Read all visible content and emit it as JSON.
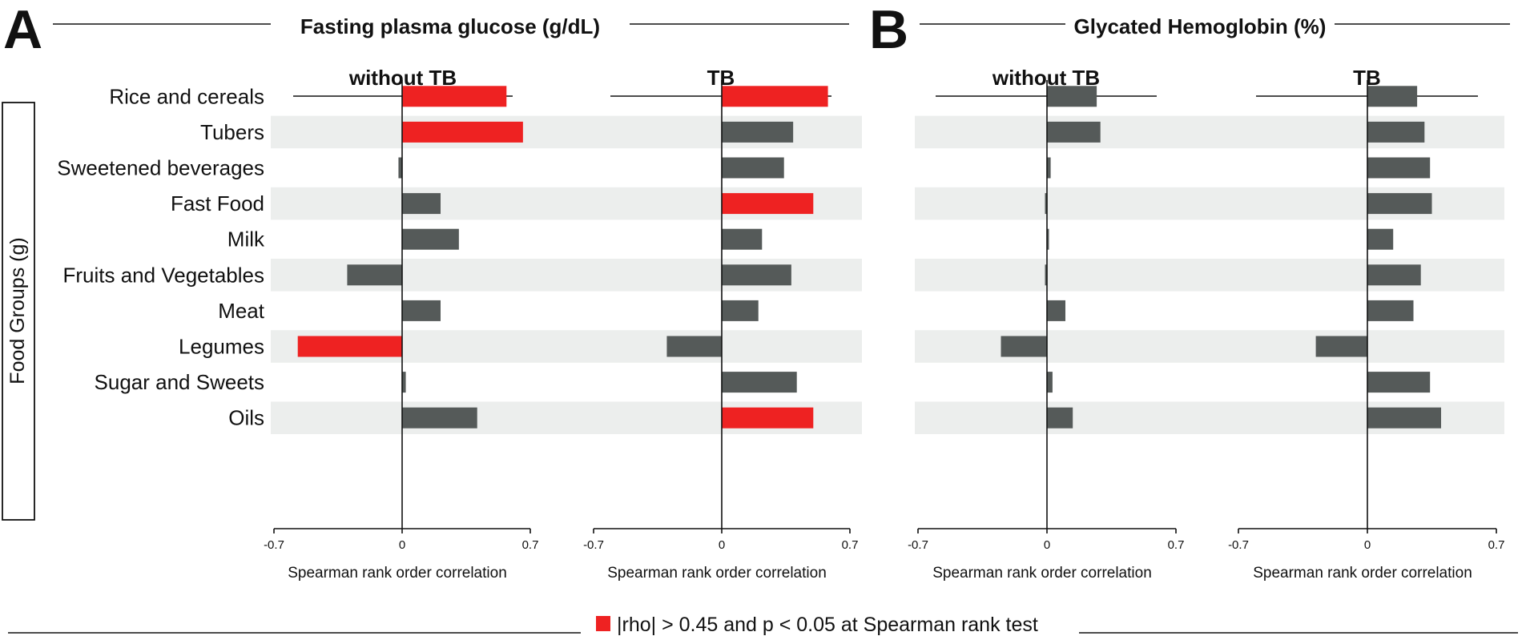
{
  "legend": {
    "text": "|rho| > 0.45 and p < 0.05 at Spearman rank test",
    "significant_color": "#ee2222",
    "nonsignificant_color": "#555a59",
    "band_color": "#eceeed"
  },
  "y_group_label": "Food Groups (g)",
  "categories": [
    "Rice and cereals",
    "Tubers",
    "Sweetened beverages",
    "Fast Food",
    "Milk",
    "Fruits and Vegetables",
    "Meat",
    "Legumes",
    "Sugar and Sweets",
    "Oils"
  ],
  "panels": [
    {
      "letter": "A",
      "title": "Fasting plasma glucose (g/dL)"
    },
    {
      "letter": "B",
      "title": "Glycated Hemoglobin (%)"
    }
  ],
  "chart_data": [
    {
      "type": "bar",
      "panel": "A",
      "subplot": "without TB",
      "title": "without TB",
      "xlabel": "Spearman rank order correlation",
      "xlim": [
        -0.7,
        0.7
      ],
      "xticks": [
        "-0.7",
        "0",
        "0.7"
      ],
      "categories": [
        "Rice and cereals",
        "Tubers",
        "Sweetened beverages",
        "Fast Food",
        "Milk",
        "Fruits and Vegetables",
        "Meat",
        "Legumes",
        "Sugar and Sweets",
        "Oils"
      ],
      "values": [
        0.57,
        0.66,
        -0.02,
        0.21,
        0.31,
        -0.3,
        0.21,
        -0.57,
        0.02,
        0.41
      ],
      "significant": [
        true,
        true,
        false,
        false,
        false,
        false,
        false,
        true,
        false,
        false
      ]
    },
    {
      "type": "bar",
      "panel": "A",
      "subplot": "TB",
      "title": "TB",
      "xlabel": "Spearman rank order correlation",
      "xlim": [
        -0.7,
        0.7
      ],
      "xticks": [
        "-0.7",
        "0",
        "0.7"
      ],
      "categories": [
        "Rice and cereals",
        "Tubers",
        "Sweetened beverages",
        "Fast Food",
        "Milk",
        "Fruits and Vegetables",
        "Meat",
        "Legumes",
        "Sugar and Sweets",
        "Oils"
      ],
      "values": [
        0.58,
        0.39,
        0.34,
        0.5,
        0.22,
        0.38,
        0.2,
        -0.3,
        0.41,
        0.5
      ],
      "significant": [
        true,
        false,
        false,
        true,
        false,
        false,
        false,
        false,
        false,
        true
      ]
    },
    {
      "type": "bar",
      "panel": "B",
      "subplot": "without TB",
      "title": "without TB",
      "xlabel": "Spearman rank order correlation",
      "xlim": [
        -0.7,
        0.7
      ],
      "xticks": [
        "-0.7",
        "0",
        "0.7"
      ],
      "categories": [
        "Rice and cereals",
        "Tubers",
        "Sweetened beverages",
        "Fast Food",
        "Milk",
        "Fruits and Vegetables",
        "Meat",
        "Legumes",
        "Sugar and Sweets",
        "Oils"
      ],
      "values": [
        0.27,
        0.29,
        0.02,
        -0.01,
        0.01,
        -0.01,
        0.1,
        -0.25,
        0.03,
        0.14
      ],
      "significant": [
        false,
        false,
        false,
        false,
        false,
        false,
        false,
        false,
        false,
        false
      ]
    },
    {
      "type": "bar",
      "panel": "B",
      "subplot": "TB",
      "title": "TB",
      "xlabel": "Spearman rank order correlation",
      "xlim": [
        -0.7,
        0.7
      ],
      "xticks": [
        "-0.7",
        "0",
        "0.7"
      ],
      "categories": [
        "Rice and cereals",
        "Tubers",
        "Sweetened beverages",
        "Fast Food",
        "Milk",
        "Fruits and Vegetables",
        "Meat",
        "Legumes",
        "Sugar and Sweets",
        "Oils"
      ],
      "values": [
        0.27,
        0.31,
        0.34,
        0.35,
        0.14,
        0.29,
        0.25,
        -0.28,
        0.34,
        0.4
      ],
      "significant": [
        false,
        false,
        false,
        false,
        false,
        false,
        false,
        false,
        false,
        false
      ]
    }
  ]
}
